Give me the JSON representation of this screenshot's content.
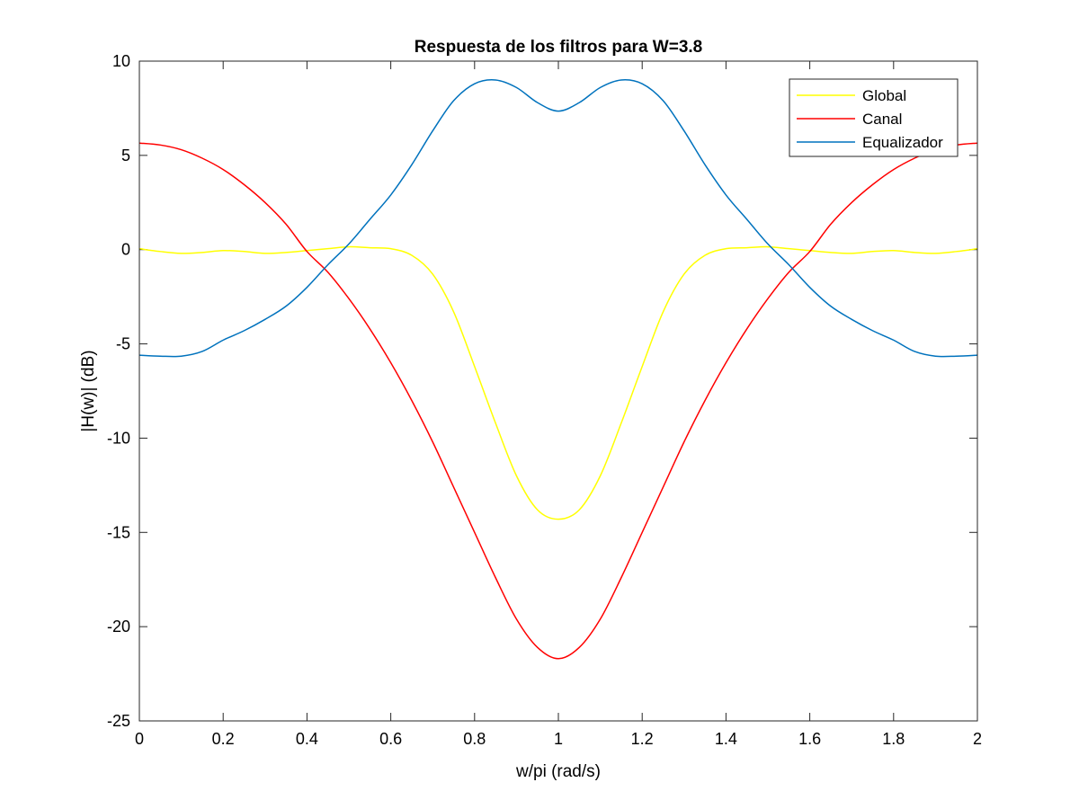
{
  "chart_data": {
    "type": "line",
    "title": "Respuesta de los filtros para W=3.8",
    "xlabel": "w/pi (rad/s)",
    "ylabel": "|H(w)|  (dB)",
    "xlim": [
      0,
      2
    ],
    "ylim": [
      -25,
      10
    ],
    "xticks": [
      0,
      0.2,
      0.4,
      0.6,
      0.8,
      1,
      1.2,
      1.4,
      1.6,
      1.8,
      2
    ],
    "xtick_labels": [
      "0",
      "0.2",
      "0.4",
      "0.6",
      "0.8",
      "1",
      "1.2",
      "1.4",
      "1.6",
      "1.8",
      "2"
    ],
    "yticks": [
      -25,
      -20,
      -15,
      -10,
      -5,
      0,
      5,
      10
    ],
    "ytick_labels": [
      "-25",
      "-20",
      "-15",
      "-10",
      "-5",
      "0",
      "5",
      "10"
    ],
    "grid": false,
    "legend_position": "top-right",
    "x": [
      0,
      0.05,
      0.1,
      0.15,
      0.2,
      0.25,
      0.3,
      0.35,
      0.4,
      0.45,
      0.5,
      0.55,
      0.6,
      0.65,
      0.7,
      0.75,
      0.8,
      0.85,
      0.9,
      0.95,
      1,
      1.05,
      1.1,
      1.15,
      1.2,
      1.25,
      1.3,
      1.35,
      1.4,
      1.45,
      1.5,
      1.55,
      1.6,
      1.65,
      1.7,
      1.75,
      1.8,
      1.85,
      1.9,
      1.95,
      2
    ],
    "series": [
      {
        "name": "Global",
        "color": "#ffff00",
        "values": [
          0.05,
          -0.1,
          -0.2,
          -0.15,
          -0.05,
          -0.1,
          -0.2,
          -0.15,
          -0.05,
          0.05,
          0.15,
          0.1,
          0.05,
          -0.3,
          -1.3,
          -3.3,
          -6.2,
          -9.2,
          -12.0,
          -13.8,
          -14.3,
          -13.8,
          -12.0,
          -9.2,
          -6.2,
          -3.3,
          -1.3,
          -0.3,
          0.05,
          0.1,
          0.15,
          0.05,
          -0.05,
          -0.15,
          -0.2,
          -0.1,
          -0.05,
          -0.15,
          -0.2,
          -0.1,
          0.05
        ]
      },
      {
        "name": "Canal",
        "color": "#ff0000",
        "values": [
          5.65,
          5.55,
          5.3,
          4.85,
          4.25,
          3.45,
          2.5,
          1.35,
          -0.1,
          -1.2,
          -2.6,
          -4.2,
          -6.0,
          -8.0,
          -10.2,
          -12.6,
          -15.0,
          -17.4,
          -19.6,
          -21.1,
          -21.7,
          -21.1,
          -19.6,
          -17.4,
          -15.0,
          -12.6,
          -10.2,
          -8.0,
          -6.0,
          -4.2,
          -2.6,
          -1.2,
          -0.1,
          1.35,
          2.5,
          3.45,
          4.25,
          4.85,
          5.3,
          5.55,
          5.65
        ]
      },
      {
        "name": "Equalizador",
        "color": "#0072bd",
        "values": [
          -5.6,
          -5.65,
          -5.65,
          -5.4,
          -4.8,
          -4.3,
          -3.7,
          -3.0,
          -2.0,
          -0.8,
          0.3,
          1.6,
          2.9,
          4.5,
          6.3,
          7.9,
          8.8,
          9.0,
          8.6,
          7.8,
          7.35,
          7.8,
          8.6,
          9.0,
          8.8,
          7.9,
          6.3,
          4.5,
          2.9,
          1.6,
          0.3,
          -0.8,
          -2.0,
          -3.0,
          -3.7,
          -4.3,
          -4.8,
          -5.4,
          -5.65,
          -5.65,
          -5.6
        ]
      }
    ]
  }
}
